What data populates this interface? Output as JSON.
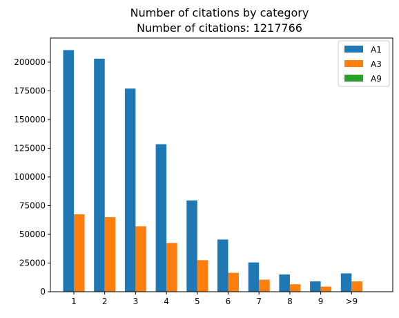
{
  "chart_data": {
    "type": "bar",
    "title": "Number of citations by category",
    "subtitle": "Number of citations: 1217766",
    "xlabel": "",
    "ylabel": "",
    "categories": [
      "1",
      "2",
      "3",
      "4",
      "5",
      "6",
      "7",
      "8",
      "9",
      ">9"
    ],
    "series": [
      {
        "name": "A1",
        "color": "#1f77b4",
        "values": [
          210500,
          203000,
          177000,
          128500,
          79500,
          45500,
          25500,
          15000,
          9000,
          16000
        ]
      },
      {
        "name": "A3",
        "color": "#ff7f0e",
        "values": [
          67500,
          65000,
          57000,
          42500,
          27500,
          16500,
          10500,
          6500,
          4500,
          9000
        ]
      },
      {
        "name": "A9",
        "color": "#2ca02c",
        "values": [
          0,
          0,
          0,
          0,
          0,
          0,
          0,
          0,
          0,
          0
        ]
      }
    ],
    "yticks": [
      "0",
      "25000",
      "50000",
      "75000",
      "100000",
      "125000",
      "150000",
      "175000",
      "200000"
    ],
    "ylim": [
      0,
      221000
    ],
    "grid": false,
    "legend_position": "top-right"
  }
}
